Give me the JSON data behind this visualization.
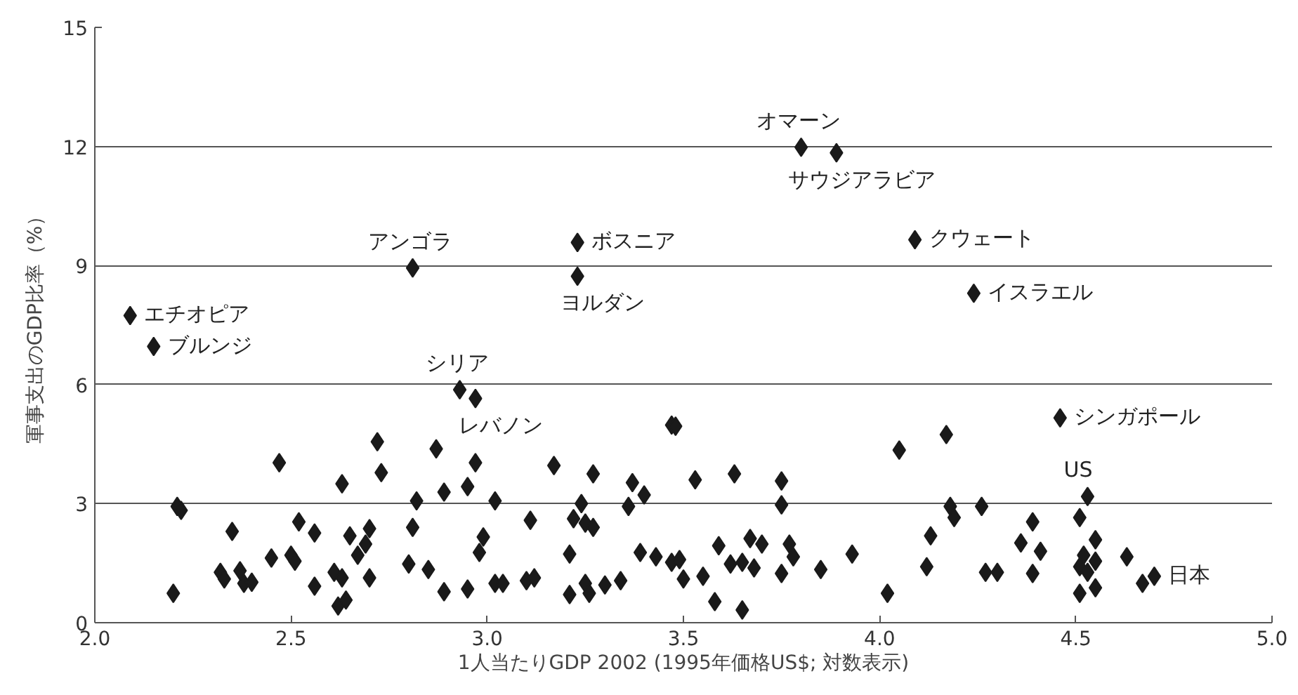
{
  "chart_data": {
    "type": "scatter",
    "xlabel": "1人当たりGDP 2002 (1995年価格US$; 対数表示)",
    "ylabel": "軍事支出のGDP比率（%）",
    "xlim": [
      2.0,
      5.0
    ],
    "xticks": [
      {
        "value": 2.0,
        "label": "2.0"
      },
      {
        "value": 2.5,
        "label": "2.5"
      },
      {
        "value": 3.0,
        "label": "3.0"
      },
      {
        "value": 3.5,
        "label": "3.5"
      },
      {
        "value": 4.0,
        "label": "4.0"
      },
      {
        "value": 4.5,
        "label": "4.5"
      },
      {
        "value": 5.0,
        "label": "5.0"
      }
    ],
    "ylim": [
      0,
      15
    ],
    "yticks": [
      0,
      3,
      6,
      9,
      12,
      15
    ],
    "grid": "y",
    "marker": "diamond",
    "series": [
      {
        "color": "#1a1a1a",
        "x": [
          2.09,
          2.15,
          2.81,
          3.23,
          3.23,
          2.93,
          2.97,
          3.8,
          3.89,
          4.09,
          4.24,
          4.46,
          4.53,
          4.7,
          4.67,
          2.21,
          2.22,
          2.35,
          2.47,
          2.2,
          2.32,
          2.33,
          2.37,
          2.38,
          2.4,
          2.45,
          2.5,
          2.51,
          2.52,
          2.56,
          2.56,
          2.61,
          2.63,
          2.63,
          2.62,
          2.64,
          2.65,
          2.7,
          2.69,
          2.67,
          2.7,
          2.72,
          2.73,
          2.8,
          2.81,
          2.82,
          2.85,
          2.87,
          2.89,
          2.89,
          2.95,
          2.95,
          2.97,
          2.99,
          2.98,
          3.02,
          3.02,
          3.17,
          3.27,
          3.11,
          3.24,
          3.22,
          3.25,
          3.27,
          3.37,
          3.4,
          3.36,
          3.21,
          3.04,
          3.1,
          3.12,
          3.21,
          3.25,
          3.26,
          3.3,
          3.34,
          3.39,
          3.43,
          3.47,
          3.49,
          3.5,
          3.55,
          3.58,
          3.65,
          3.47,
          3.48,
          3.53,
          3.63,
          3.75,
          3.75,
          3.59,
          3.62,
          3.65,
          3.67,
          3.7,
          3.68,
          3.77,
          3.78,
          3.75,
          3.85,
          3.93,
          4.02,
          4.05,
          4.17,
          4.18,
          4.19,
          4.26,
          4.13,
          4.12,
          4.27,
          4.3,
          4.39,
          4.36,
          4.41,
          4.39,
          4.51,
          4.55,
          4.52,
          4.55,
          4.51,
          4.53,
          4.55,
          4.51,
          4.63
        ],
        "values": [
          7.74,
          6.96,
          8.94,
          9.58,
          8.73,
          5.87,
          5.65,
          11.98,
          11.84,
          9.65,
          8.3,
          5.16,
          3.18,
          1.17,
          0.99,
          2.93,
          2.83,
          2.3,
          4.03,
          0.74,
          1.27,
          1.1,
          1.31,
          0.99,
          1.02,
          1.63,
          1.7,
          1.55,
          2.54,
          2.26,
          0.92,
          1.27,
          1.13,
          3.5,
          0.42,
          0.57,
          2.19,
          2.37,
          1.98,
          1.7,
          1.13,
          4.56,
          3.78,
          1.48,
          2.4,
          3.07,
          1.34,
          4.38,
          3.29,
          0.78,
          3.43,
          0.85,
          4.03,
          2.16,
          1.77,
          3.07,
          0.99,
          3.96,
          3.75,
          2.58,
          3.0,
          2.62,
          2.51,
          2.4,
          3.53,
          3.22,
          2.93,
          1.73,
          0.99,
          1.06,
          1.13,
          0.71,
          0.99,
          0.74,
          0.95,
          1.06,
          1.77,
          1.66,
          1.52,
          1.59,
          1.1,
          1.17,
          0.53,
          0.32,
          4.98,
          4.95,
          3.6,
          3.75,
          3.57,
          2.97,
          1.94,
          1.48,
          1.52,
          2.12,
          1.98,
          1.38,
          1.98,
          1.66,
          1.24,
          1.34,
          1.73,
          0.74,
          4.35,
          4.74,
          2.93,
          2.65,
          2.93,
          2.19,
          1.41,
          1.27,
          1.27,
          2.54,
          2.01,
          1.8,
          1.24,
          2.65,
          2.09,
          1.7,
          1.55,
          1.41,
          1.27,
          0.88,
          0.74,
          1.66
        ]
      }
    ],
    "annotations": [
      {
        "text": "エチオピア",
        "x": 2.09,
        "y": 7.74
      },
      {
        "text": "ブルンジ",
        "x": 2.15,
        "y": 6.96
      },
      {
        "text": "アンゴラ",
        "x": 2.81,
        "y": 8.94
      },
      {
        "text": "ボスニア",
        "x": 3.23,
        "y": 9.58
      },
      {
        "text": "ヨルダン",
        "x": 3.23,
        "y": 8.73
      },
      {
        "text": "シリア",
        "x": 2.93,
        "y": 5.87
      },
      {
        "text": "レバノン",
        "x": 2.97,
        "y": 5.65
      },
      {
        "text": "オマーン",
        "x": 3.8,
        "y": 11.98
      },
      {
        "text": "サウジアラビア",
        "x": 3.89,
        "y": 11.84
      },
      {
        "text": "クウェート",
        "x": 4.09,
        "y": 9.65
      },
      {
        "text": "イスラエル",
        "x": 4.24,
        "y": 8.3
      },
      {
        "text": "シンガポール",
        "x": 4.46,
        "y": 5.16
      },
      {
        "text": "US",
        "x": 4.53,
        "y": 3.18
      },
      {
        "text": "日本",
        "x": 4.7,
        "y": 1.17
      }
    ]
  }
}
